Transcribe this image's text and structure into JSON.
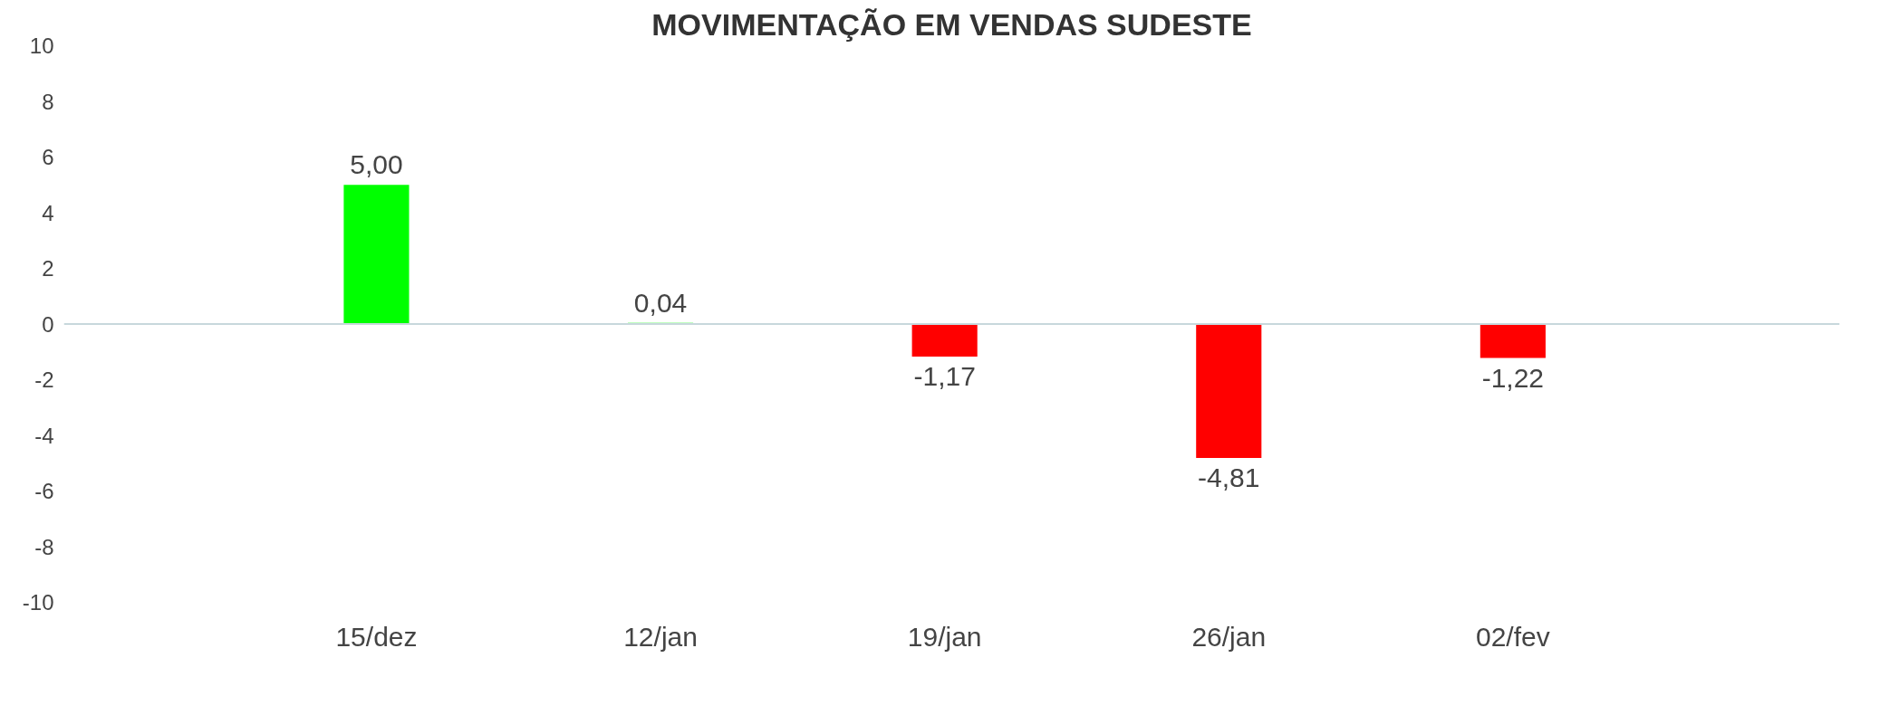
{
  "chart_data": {
    "type": "bar",
    "title": "MOVIMENTAÇÃO EM VENDAS SUDESTE",
    "categories": [
      "15/dez",
      "12/jan",
      "19/jan",
      "26/jan",
      "02/fev"
    ],
    "values": [
      5.0,
      0.04,
      -1.17,
      -4.81,
      -1.22
    ],
    "colors": [
      "#00ff00",
      "#00ff00",
      "#ff0000",
      "#ff0000",
      "#ff0000"
    ],
    "value_labels": [
      "5,00",
      "0,04",
      "-1,17",
      "-4,81",
      "-1,22"
    ],
    "ylim": [
      -10,
      10
    ],
    "yticks": [
      -10,
      -8,
      -6,
      -4,
      -2,
      0,
      2,
      4,
      6,
      8,
      10
    ]
  }
}
